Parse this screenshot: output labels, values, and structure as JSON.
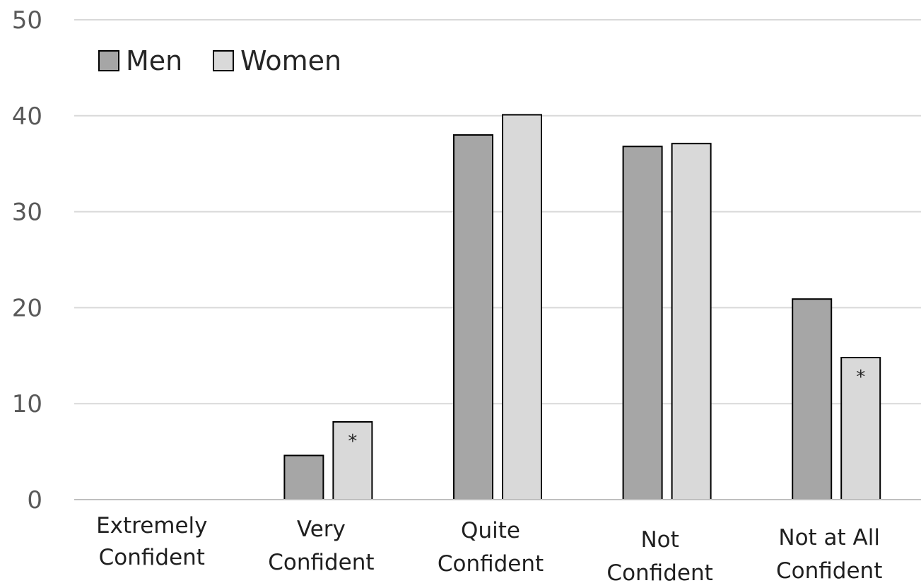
{
  "chart_data": {
    "type": "bar",
    "categories": [
      [
        "Extremely",
        "Confident"
      ],
      [
        "Very",
        "Confident"
      ],
      [
        "Quite",
        "Confident"
      ],
      [
        "Not",
        "Confident"
      ],
      [
        "Not at All",
        "Confident"
      ]
    ],
    "series": [
      {
        "name": "Men",
        "color": "#a6a6a6",
        "values": [
          0,
          4.6,
          38,
          36.8,
          20.9
        ]
      },
      {
        "name": "Women",
        "color": "#d9d9d9",
        "values": [
          0,
          8.1,
          40.1,
          37.1,
          14.8
        ]
      }
    ],
    "annotations": [
      {
        "category_index": 1,
        "series_index": 1,
        "text": "*"
      },
      {
        "category_index": 4,
        "series_index": 1,
        "text": "*"
      }
    ],
    "title": "",
    "xlabel": "",
    "ylabel": "",
    "ylim": [
      0,
      50
    ],
    "yticks": [
      0,
      10,
      20,
      30,
      40,
      50
    ],
    "grid": true,
    "legend_position": "top-left",
    "bar_outline_color": "#000000"
  }
}
